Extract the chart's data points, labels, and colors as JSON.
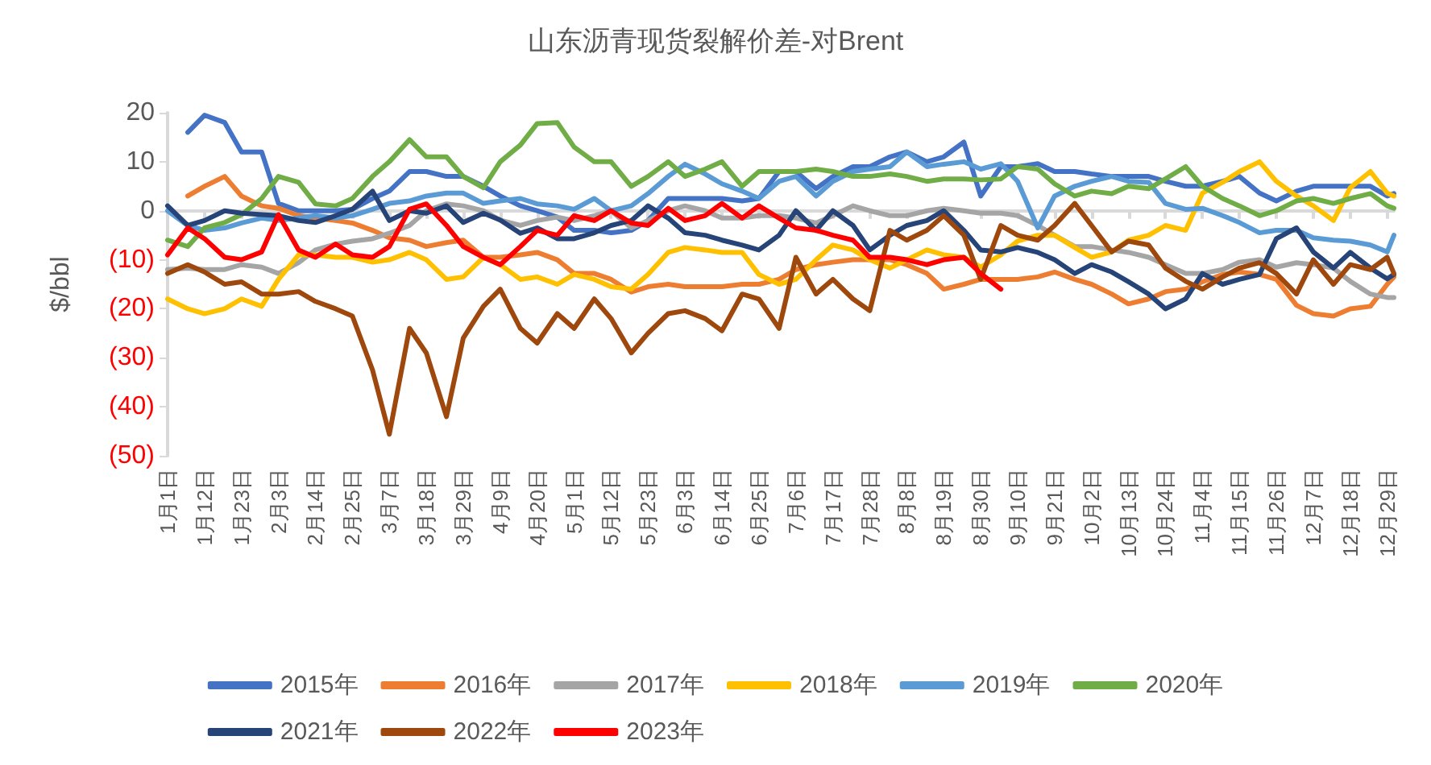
{
  "chart_data": {
    "type": "line",
    "title": "山东沥青现货裂解价差-对Brent",
    "ylabel": "$/bbl",
    "x": [
      "--01-01",
      "--01-07",
      "--01-12",
      "--01-18",
      "--01-23",
      "--01-29",
      "--02-03",
      "--02-09",
      "--02-14",
      "--02-20",
      "--02-25",
      "--03-02",
      "--03-07",
      "--03-13",
      "--03-18",
      "--03-24",
      "--03-29",
      "--04-04",
      "--04-09",
      "--04-15",
      "--04-20",
      "--04-26",
      "--05-01",
      "--05-07",
      "--05-12",
      "--05-18",
      "--05-23",
      "--05-29",
      "--06-03",
      "--06-09",
      "--06-14",
      "--06-20",
      "--06-25",
      "--07-01",
      "--07-06",
      "--07-12",
      "--07-17",
      "--07-23",
      "--07-28",
      "--08-03",
      "--08-08",
      "--08-14",
      "--08-19",
      "--08-25",
      "--08-30",
      "--09-05",
      "--09-10",
      "--09-16",
      "--09-21",
      "--09-27",
      "--10-02",
      "--10-08",
      "--10-13",
      "--10-19",
      "--10-24",
      "--10-30",
      "--11-04",
      "--11-10",
      "--11-15",
      "--11-21",
      "--11-26",
      "--12-02",
      "--12-07",
      "--12-13",
      "--12-18",
      "--12-24",
      "--12-29",
      "--12-31"
    ],
    "xlim": [
      "--01-01",
      "--12-31"
    ],
    "xticks": [
      {
        "value": "--01-01",
        "label": "1月1日"
      },
      {
        "value": "--01-12",
        "label": "1月12日"
      },
      {
        "value": "--01-23",
        "label": "1月23日"
      },
      {
        "value": "--02-03",
        "label": "2月3日"
      },
      {
        "value": "--02-14",
        "label": "2月14日"
      },
      {
        "value": "--02-25",
        "label": "2月25日"
      },
      {
        "value": "--03-07",
        "label": "3月7日"
      },
      {
        "value": "--03-18",
        "label": "3月18日"
      },
      {
        "value": "--03-29",
        "label": "3月29日"
      },
      {
        "value": "--04-09",
        "label": "4月9日"
      },
      {
        "value": "--04-20",
        "label": "4月20日"
      },
      {
        "value": "--05-01",
        "label": "5月1日"
      },
      {
        "value": "--05-12",
        "label": "5月12日"
      },
      {
        "value": "--05-23",
        "label": "5月23日"
      },
      {
        "value": "--06-03",
        "label": "6月3日"
      },
      {
        "value": "--06-14",
        "label": "6月14日"
      },
      {
        "value": "--06-25",
        "label": "6月25日"
      },
      {
        "value": "--07-06",
        "label": "7月6日"
      },
      {
        "value": "--07-17",
        "label": "7月17日"
      },
      {
        "value": "--07-28",
        "label": "7月28日"
      },
      {
        "value": "--08-08",
        "label": "8月8日"
      },
      {
        "value": "--08-19",
        "label": "8月19日"
      },
      {
        "value": "--08-30",
        "label": "8月30日"
      },
      {
        "value": "--09-10",
        "label": "9月10日"
      },
      {
        "value": "--09-21",
        "label": "9月21日"
      },
      {
        "value": "--10-02",
        "label": "10月2日"
      },
      {
        "value": "--10-13",
        "label": "10月13日"
      },
      {
        "value": "--10-24",
        "label": "10月24日"
      },
      {
        "value": "--11-04",
        "label": "11月4日"
      },
      {
        "value": "--11-15",
        "label": "11月15日"
      },
      {
        "value": "--11-26",
        "label": "11月26日"
      },
      {
        "value": "--12-07",
        "label": "12月7日"
      },
      {
        "value": "--12-18",
        "label": "12月18日"
      },
      {
        "value": "--12-29",
        "label": "12月29日"
      }
    ],
    "ylim": [
      -50,
      20
    ],
    "yticks": [
      {
        "value": -50,
        "label": "(50)"
      },
      {
        "value": -40,
        "label": "(40)"
      },
      {
        "value": -30,
        "label": "(30)"
      },
      {
        "value": -20,
        "label": "(20)"
      },
      {
        "value": -10,
        "label": "(10)"
      },
      0,
      10,
      20
    ],
    "legend": "bottom",
    "series": [
      {
        "name": "2015年",
        "color": "#4472c4",
        "values": [
          null,
          16,
          19.5,
          18,
          12,
          12,
          1.5,
          0,
          0,
          0,
          0.3,
          2.5,
          4,
          8,
          8,
          7,
          7,
          5,
          3,
          1,
          0,
          -1.3,
          -4,
          -4,
          -4.5,
          -4,
          -2,
          2.5,
          2.5,
          2.5,
          2.5,
          2,
          2.5,
          8,
          8,
          4.5,
          7,
          9,
          9,
          11,
          12,
          10,
          11,
          14,
          3,
          9,
          9,
          9.6,
          8,
          8,
          7.5,
          7,
          7,
          7,
          6,
          5,
          5,
          6,
          7,
          3.6,
          2,
          4,
          5,
          5,
          5,
          5,
          3,
          3.5
        ]
      },
      {
        "name": "2016年",
        "color": "#ed7d31",
        "values": [
          null,
          3,
          5,
          7,
          3,
          1,
          0.5,
          -1,
          -1.5,
          -2,
          -2.5,
          -4,
          -5.5,
          -6,
          -7.3,
          -6.5,
          -6,
          -9.5,
          -9.5,
          -9,
          -8.5,
          -10,
          -12.8,
          -12.8,
          -14,
          -16.6,
          -15.5,
          -15,
          -15.5,
          -15.5,
          -15.5,
          -15,
          -15,
          -14,
          -12,
          -11,
          -10.5,
          -10,
          -10,
          -10,
          -11,
          -12.8,
          -16,
          -15,
          -14,
          -14,
          -14,
          -13.5,
          -12.5,
          -14,
          -15,
          -17,
          -19,
          -18,
          -16.5,
          -16,
          -14.5,
          -13,
          -12.5,
          -13,
          -14,
          -19.3,
          -21,
          -21.5,
          -20,
          -19.5,
          -15,
          -13.5
        ]
      },
      {
        "name": "2017年",
        "color": "#a5a5a5",
        "values": [
          -12,
          -11.7,
          -12,
          -12,
          -11,
          -11.5,
          -12.8,
          -10.6,
          -8,
          -6.8,
          -6.2,
          -5.7,
          -4.6,
          -3,
          0,
          1.4,
          1,
          0,
          -1.9,
          -3,
          -2,
          -1.3,
          -2,
          -1,
          0,
          -3.5,
          -2,
          0,
          1,
          0,
          -1.5,
          -1.5,
          -1,
          -1,
          -1.5,
          -2.5,
          -1,
          1,
          0,
          -1,
          -1,
          0,
          0.5,
          0,
          -0.5,
          -0.5,
          -1,
          -3,
          -5,
          -7.3,
          -7.3,
          -8,
          -8.5,
          -9.5,
          -11,
          -12.8,
          -12.8,
          -12,
          -10.5,
          -10,
          -11.5,
          -10.6,
          -11,
          -11.7,
          -14.4,
          -17,
          -17.7,
          -17.7
        ]
      },
      {
        "name": "2018年",
        "color": "#ffc000",
        "values": [
          -18,
          -20,
          -21,
          -20,
          -18,
          -19.5,
          -14,
          -9,
          -9,
          -9.5,
          -9.5,
          -10.5,
          -10,
          -8.5,
          -10,
          -14,
          -13.5,
          -9.5,
          -11,
          -14,
          -13.5,
          -15,
          -13,
          -14,
          -15.5,
          -16,
          -13,
          -8.5,
          -7.5,
          -8,
          -8.5,
          -8.5,
          -13,
          -15,
          -14,
          -10,
          -7,
          -8,
          -10,
          -11.7,
          -10,
          -8,
          -9,
          -9.5,
          -11.5,
          -9,
          -6.2,
          -5,
          -5,
          -7.5,
          -9.5,
          -8.4,
          -6,
          -5,
          -3,
          -4,
          3.6,
          5.8,
          8,
          10,
          6,
          3,
          1,
          -2,
          4.7,
          8,
          3.6,
          3
        ]
      },
      {
        "name": "2019年",
        "color": "#5b9bd5",
        "values": [
          0,
          -3,
          -4,
          -3.5,
          -2.5,
          -1.5,
          -2,
          -1.5,
          -1,
          -1.5,
          -1,
          0.3,
          1.5,
          2,
          3,
          3.6,
          3.6,
          1.5,
          2,
          2.5,
          1.4,
          1,
          0.3,
          2.5,
          0,
          1,
          3.5,
          7,
          9.5,
          7.5,
          5.5,
          4,
          2.5,
          6,
          7,
          3,
          6,
          8,
          8.5,
          9,
          12,
          9,
          9.5,
          10,
          8.5,
          9.6,
          6,
          -3.5,
          3,
          5,
          6,
          7,
          6,
          5.8,
          1.5,
          0.3,
          0.5,
          -1,
          -2.4,
          -4.5,
          -4,
          -4,
          -5.5,
          -6,
          -6.2,
          -7,
          -8.4,
          -5
        ]
      },
      {
        "name": "2020年",
        "color": "#70ad47",
        "values": [
          -6,
          -7.3,
          -3.5,
          -2.4,
          -0.8,
          2.5,
          7,
          5.8,
          1.4,
          1,
          2.5,
          7,
          10,
          14.5,
          11,
          11,
          7,
          4.7,
          10,
          13.4,
          17.8,
          18,
          13,
          10,
          10,
          5,
          7,
          10,
          7,
          8.5,
          10,
          5,
          8,
          8,
          8,
          8.5,
          8,
          7,
          7,
          7.5,
          7,
          6,
          6.5,
          6.5,
          6.3,
          6.5,
          9,
          8.5,
          5.5,
          3,
          4,
          3.5,
          5,
          4.5,
          6.5,
          9,
          5,
          2.5,
          1,
          -1,
          0,
          2,
          2.5,
          1.5,
          2.5,
          3.5,
          1,
          0.5
        ]
      },
      {
        "name": "2021年",
        "color": "#264478",
        "values": [
          1,
          -3,
          -2,
          0,
          -0.5,
          -0.8,
          -1,
          -2,
          -2.4,
          -1,
          0.3,
          4,
          -2,
          0,
          -0.5,
          1,
          -2.4,
          -0.5,
          -1.9,
          -4.6,
          -3.5,
          -5.7,
          -5.7,
          -4.5,
          -3,
          -2,
          1,
          -1.5,
          -4.5,
          -5,
          -6,
          -7,
          -8,
          -5,
          0,
          -4,
          0,
          -3,
          -8,
          -5,
          -3,
          -2,
          0,
          -4,
          -8,
          -8.4,
          -7.5,
          -8.5,
          -10,
          -12.8,
          -11,
          -12.5,
          -14.5,
          -17,
          -20,
          -18,
          -12.8,
          -15,
          -14,
          -13,
          -5.7,
          -3.5,
          -8.4,
          -11.7,
          -8.5,
          -11.7,
          -13.9,
          -13
        ]
      },
      {
        "name": "2022年",
        "color": "#9e480e",
        "values": [
          -12.8,
          -11,
          -12.5,
          -15,
          -14.5,
          -17,
          -17,
          -16.5,
          -18.5,
          -20,
          -21.5,
          -32.5,
          -45.6,
          -24,
          -29,
          -42,
          -26,
          -19.5,
          -16,
          -24,
          -27,
          -21,
          -24,
          -18,
          -22,
          -29,
          -25,
          -21,
          -20.4,
          -22,
          -24.5,
          -17,
          -18,
          -24,
          -9.5,
          -17,
          -14,
          -18,
          -20.4,
          -4,
          -6,
          -4,
          -1,
          -5,
          -14,
          -3,
          -5,
          -6,
          -3,
          1.5,
          -3,
          -8.4,
          -6.2,
          -7,
          -11.7,
          -14.4,
          -16,
          -13.5,
          -11.7,
          -10.6,
          -12.8,
          -17,
          -10,
          -15,
          -11,
          -12,
          -9.5,
          -12.8
        ]
      },
      {
        "name": "2023年",
        "color": "#ff0000",
        "values": [
          -9,
          -3.5,
          -5.7,
          -9.5,
          -10,
          -8.4,
          -0.8,
          -8,
          -9.5,
          -6.8,
          -9,
          -9.5,
          -7.3,
          0.3,
          1.4,
          -3,
          -7.3,
          -9.5,
          -11,
          -7.3,
          -4,
          -5,
          -1,
          -2,
          0,
          -2.5,
          -3,
          0.5,
          -2,
          -1,
          1.5,
          -1.5,
          1,
          -1.5,
          -3.5,
          -4,
          -5,
          -6,
          -9.5,
          -9.5,
          -10,
          -11,
          -10,
          -9.5,
          -12.8,
          -16,
          null,
          null,
          null,
          null,
          null,
          null,
          null,
          null,
          null,
          null,
          null,
          null,
          null,
          null,
          null,
          null,
          null,
          null,
          null,
          null,
          null,
          null
        ]
      }
    ]
  }
}
